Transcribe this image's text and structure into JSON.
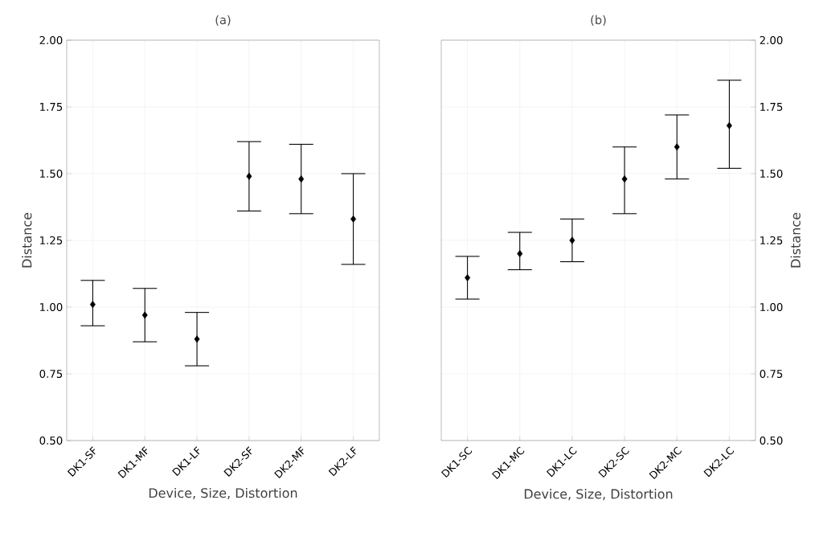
{
  "chart_data": [
    {
      "type": "scatter",
      "title": "(a)",
      "xlabel": "Device, Size, Distortion",
      "ylabel": "Distance",
      "categories": [
        "DK1-SF",
        "DK1-MF",
        "DK1-LF",
        "DK2-SF",
        "DK2-MF",
        "DK2-LF"
      ],
      "series": [
        {
          "color": "#000000",
          "values": [
            1.01,
            0.97,
            0.88,
            1.49,
            1.48,
            1.33
          ],
          "errors": [
            [
              0.93,
              1.1
            ],
            [
              0.87,
              1.07
            ],
            [
              0.78,
              0.98
            ],
            [
              1.36,
              1.62
            ],
            [
              1.35,
              1.61
            ],
            [
              1.16,
              1.5
            ]
          ]
        }
      ],
      "ylim": [
        0.5,
        2.0
      ],
      "yticks": [
        {
          "value": 0.5,
          "label": "0.50"
        },
        {
          "value": 0.75,
          "label": "0.75"
        },
        {
          "value": 1.0,
          "label": "1.00"
        },
        {
          "value": 1.25,
          "label": "1.25"
        },
        {
          "value": 1.5,
          "label": "1.50"
        },
        {
          "value": 1.75,
          "label": "1.75"
        },
        {
          "value": 2.0,
          "label": "2.00"
        }
      ],
      "grid": true,
      "marker": "diamond"
    },
    {
      "type": "scatter",
      "title": "(b)",
      "xlabel": "Device, Size, Distortion",
      "y2label": "Distance",
      "categories": [
        "DK1-SC",
        "DK1-MC",
        "DK1-LC",
        "DK2-SC",
        "DK2-MC",
        "DK2-LC"
      ],
      "series": [
        {
          "color": "#000000",
          "axis": "y2",
          "values": [
            1.11,
            1.2,
            1.25,
            1.48,
            1.6,
            1.68
          ],
          "errors": [
            [
              1.03,
              1.19
            ],
            [
              1.14,
              1.28
            ],
            [
              1.17,
              1.33
            ],
            [
              1.35,
              1.6
            ],
            [
              1.48,
              1.72
            ],
            [
              1.52,
              1.85
            ]
          ]
        }
      ],
      "y2lim": [
        0.5,
        2.0
      ],
      "y2ticks": [
        {
          "value": 0.5,
          "label": "0.50"
        },
        {
          "value": 0.75,
          "label": "0.75"
        },
        {
          "value": 1.0,
          "label": "1.00"
        },
        {
          "value": 1.25,
          "label": "1.25"
        },
        {
          "value": 1.5,
          "label": "1.50"
        },
        {
          "value": 1.75,
          "label": "1.75"
        },
        {
          "value": 2.0,
          "label": "2.00"
        }
      ],
      "grid": true,
      "marker": "diamond"
    }
  ]
}
